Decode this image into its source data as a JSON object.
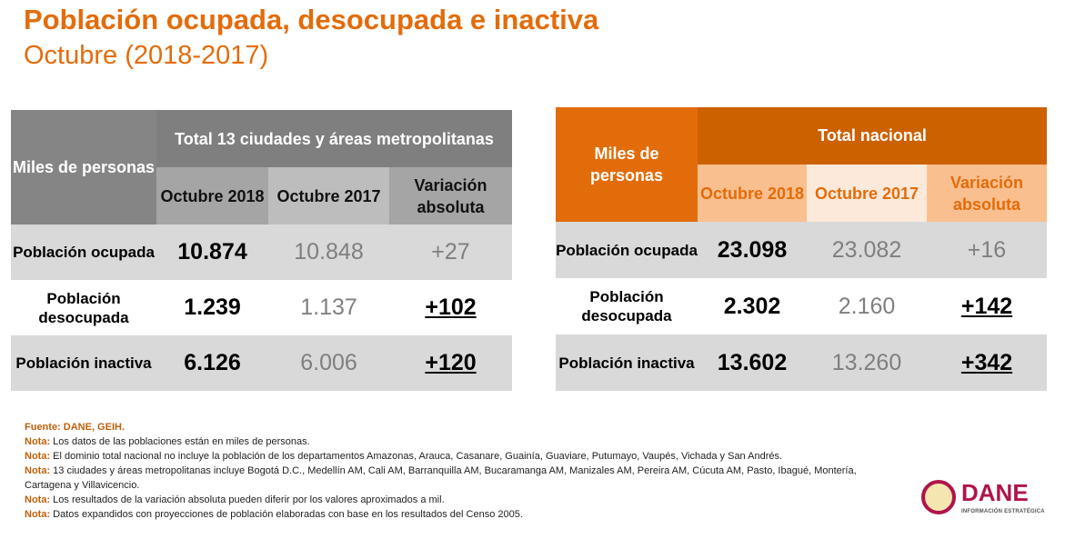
{
  "title": "Población ocupada, desocupada e inactiva",
  "subtitle": "Octubre (2018-2017)",
  "left_table": {
    "corner": "Miles de personas",
    "group": "Total 13 ciudades y áreas metropolitanas",
    "columns": [
      "Octubre 2018",
      "Octubre 2017",
      "Variación absoluta"
    ],
    "rows": [
      {
        "label": "Población ocupada",
        "v2018": "10.874",
        "v2017": "10.848",
        "var": "+27"
      },
      {
        "label": "Población desocupada",
        "v2018": "1.239",
        "v2017": "1.137",
        "var": "+102"
      },
      {
        "label": "Población inactiva",
        "v2018": "6.126",
        "v2017": "6.006",
        "var": "+120"
      }
    ]
  },
  "right_table": {
    "corner": "Miles de personas",
    "group": "Total nacional",
    "columns": [
      "Octubre 2018",
      "Octubre 2017",
      "Variación absoluta"
    ],
    "rows": [
      {
        "label": "Población ocupada",
        "v2018": "23.098",
        "v2017": "23.082",
        "var": "+16"
      },
      {
        "label": "Población desocupada",
        "v2018": "2.302",
        "v2017": "2.160",
        "var": "+142"
      },
      {
        "label": "Población inactiva",
        "v2018": "13.602",
        "v2017": "13.260",
        "var": "+342"
      }
    ]
  },
  "notes": {
    "source": "Fuente: DANE, GEIH.",
    "prefix": "Nota:",
    "lines": [
      "Los datos de las poblaciones están en miles de personas.",
      "El dominio total nacional no incluye la población de los departamentos Amazonas, Arauca, Casanare, Guainía, Guaviare, Putumayo, Vaupés, Vichada y San Andrés.",
      "13 ciudades y áreas metropolitanas incluye Bogotá D.C., Medellín AM, Cali AM, Barranquilla AM, Bucaramanga AM, Manizales AM,  Pereira AM, Cúcuta AM, Pasto, Ibagué, Montería, Cartagena y Villavicencio.",
      "Los resultados de la variación absoluta pueden diferir por los valores aproximados a mil.",
      "Datos expandidos con proyecciones de población elaboradas con base en los resultados del Censo 2005."
    ]
  },
  "logo": {
    "name": "DANE",
    "tagline": "INFORMACIÓN ESTRATÉGICA"
  }
}
